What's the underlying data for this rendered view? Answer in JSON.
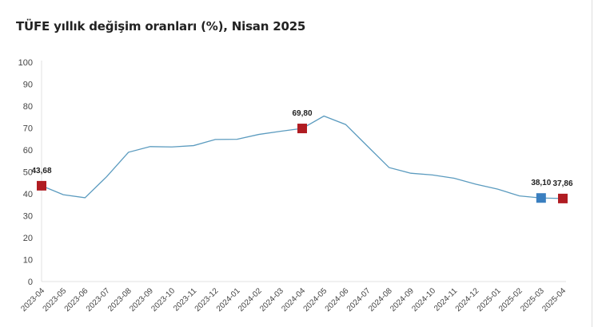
{
  "chart_data": {
    "type": "line",
    "title": "TÜFE yıllık değişim oranları (%), Nisan 2025",
    "categories": [
      "2023-04",
      "2023-05",
      "2023-06",
      "2023-07",
      "2023-08",
      "2023-09",
      "2023-10",
      "2023-11",
      "2023-12",
      "2024-01",
      "2024-02",
      "2024-03",
      "2024-04",
      "2024-05",
      "2024-06",
      "2024-07",
      "2024-08",
      "2024-09",
      "2024-10",
      "2024-11",
      "2024-12",
      "2025-01",
      "2025-02",
      "2025-03",
      "2025-04"
    ],
    "values": [
      43.68,
      39.59,
      38.21,
      47.83,
      58.94,
      61.53,
      61.36,
      61.98,
      64.77,
      64.86,
      67.07,
      68.5,
      69.8,
      75.45,
      71.6,
      61.78,
      51.97,
      49.38,
      48.58,
      47.09,
      44.38,
      42.12,
      39.05,
      38.1,
      37.86
    ],
    "ylim": [
      0,
      100
    ],
    "yticks": [
      0,
      10,
      20,
      30,
      40,
      50,
      60,
      70,
      80,
      90,
      100
    ],
    "grid": false,
    "line_color": "#5b9bbf",
    "markers": [
      {
        "index": 0,
        "label": "43,68",
        "color": "#b01c22"
      },
      {
        "index": 12,
        "label": "69,80",
        "color": "#b01c22"
      },
      {
        "index": 23,
        "label": "38,10",
        "color": "#3a7fc0"
      },
      {
        "index": 24,
        "label": "37,86",
        "color": "#b01c22"
      }
    ]
  }
}
